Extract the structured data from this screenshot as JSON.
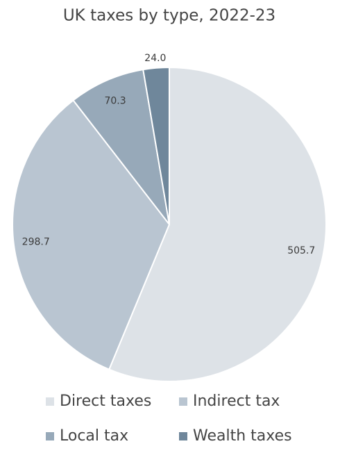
{
  "chart_data": {
    "type": "pie",
    "title": "UK taxes by type, 2022-23",
    "categories": [
      "Direct taxes",
      "Indirect tax",
      "Local tax",
      "Wealth taxes"
    ],
    "values": [
      505.7,
      298.7,
      70.3,
      24.0
    ],
    "value_labels": [
      "505.7",
      "298.7",
      "70.3",
      "24.0"
    ],
    "colors": [
      "#dde2e7",
      "#b9c5d1",
      "#97a9b9",
      "#6f879b"
    ],
    "legend": "bottom"
  }
}
